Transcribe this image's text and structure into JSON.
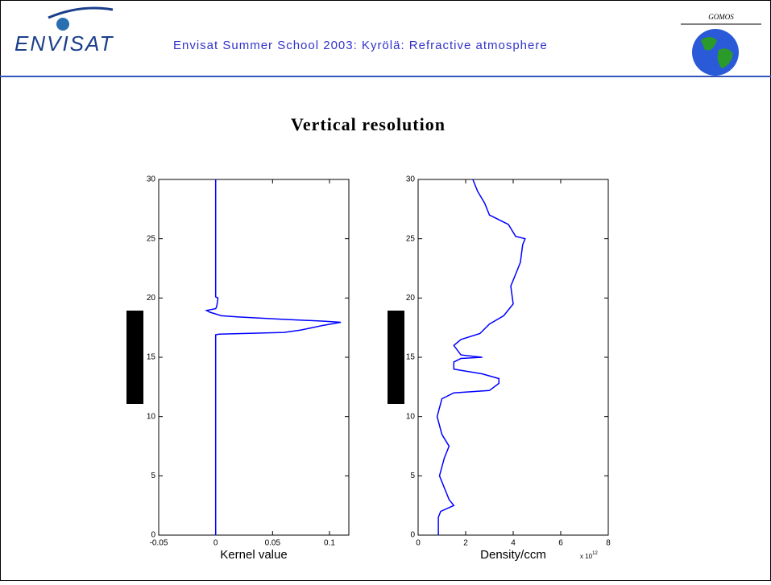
{
  "header": {
    "logo_left": "ENVISAT",
    "title": "Envisat Summer School 2003: Kyrölä: Refractive atmosphere",
    "logo_right": "GOMOS"
  },
  "slide_title": "Vertical resolution",
  "chart_data": [
    {
      "type": "line",
      "xlabel": "Kernel value",
      "xlim": [
        -0.05,
        0.117
      ],
      "xticks": [
        -0.05,
        0,
        0.05,
        0.1
      ],
      "ylim": [
        0,
        30
      ],
      "yticks": [
        0,
        5,
        10,
        15,
        20,
        25,
        30
      ],
      "grid": false,
      "series": [
        {
          "color": "#0000ff",
          "x": [
            0,
            0,
            0.003,
            0.06,
            0.075,
            0.095,
            0.11,
            0.095,
            0.06,
            0.02,
            0.005,
            -0.005,
            -0.008,
            0,
            0.001,
            0.002,
            0,
            0
          ],
          "values": [
            0,
            16.9,
            16.95,
            17.1,
            17.3,
            17.7,
            17.95,
            18.05,
            18.2,
            18.4,
            18.5,
            18.8,
            18.95,
            19.1,
            19.3,
            20,
            20.1,
            30
          ]
        }
      ]
    },
    {
      "type": "line",
      "xlabel": "Density/ccm",
      "x_multiplier": {
        "base": "x 10",
        "exponent": "12"
      },
      "xlim": [
        0,
        8
      ],
      "xticks": [
        0,
        2,
        4,
        6,
        8
      ],
      "ylim": [
        0,
        30
      ],
      "yticks": [
        0,
        5,
        10,
        15,
        20,
        25,
        30
      ],
      "grid": false,
      "series": [
        {
          "color": "#0000ff",
          "x": [
            0.85,
            0.85,
            0.95,
            1.5,
            1.3,
            1.1,
            0.9,
            1.1,
            1.3,
            1.0,
            0.8,
            1.0,
            1.5,
            3.0,
            3.4,
            3.4,
            2.7,
            1.5,
            1.5,
            1.8,
            2.7,
            1.8,
            1.5,
            1.8,
            2.6,
            3.0,
            3.6,
            4.0,
            3.9,
            4.1,
            4.3,
            4.4,
            4.5,
            4.1,
            3.8,
            3.5,
            3.0,
            2.8,
            2.5,
            2.3
          ],
          "values": [
            0,
            1.5,
            2,
            2.5,
            3,
            4,
            5,
            6.5,
            7.5,
            8.5,
            10,
            11.5,
            12,
            12.2,
            12.8,
            13.2,
            13.6,
            14,
            14.6,
            14.9,
            15,
            15.2,
            16,
            16.5,
            17,
            17.8,
            18.5,
            19.5,
            21,
            22,
            23,
            24.5,
            25,
            25.2,
            26.2,
            26.5,
            27,
            28,
            29,
            30
          ]
        }
      ]
    }
  ]
}
